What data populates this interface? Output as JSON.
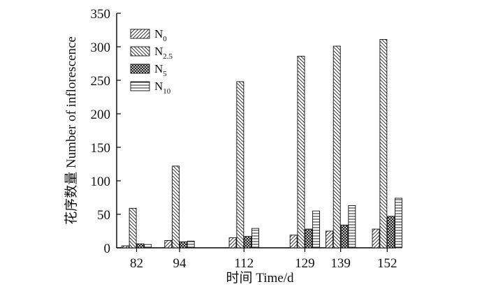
{
  "chart_data": {
    "type": "bar",
    "xlabel": "时间 Time/d",
    "ylabel": "花序数量 Number of inflorescence",
    "ylim": [
      0,
      350
    ],
    "yticks": [
      0,
      50,
      100,
      150,
      200,
      250,
      300,
      350
    ],
    "categories": [
      "82",
      "94",
      "112",
      "129",
      "139",
      "152"
    ],
    "x": [
      82,
      94,
      112,
      129,
      139,
      152
    ],
    "legend_position": "top-left",
    "grid": false,
    "series": [
      {
        "name": "N0",
        "base": "N",
        "sub": "0",
        "pattern": "hatch-forward",
        "values": [
          3,
          11,
          15,
          19,
          25,
          28
        ]
      },
      {
        "name": "N2.5",
        "base": "N",
        "sub": "2.5",
        "pattern": "hatch-back",
        "values": [
          59,
          122,
          248,
          286,
          301,
          311
        ]
      },
      {
        "name": "N5",
        "base": "N",
        "sub": "5",
        "pattern": "crosshatch",
        "values": [
          6,
          9,
          17,
          28,
          34,
          47
        ]
      },
      {
        "name": "N10",
        "base": "N",
        "sub": "10",
        "pattern": "horizontal",
        "values": [
          5,
          10,
          29,
          55,
          63,
          74
        ]
      }
    ]
  }
}
